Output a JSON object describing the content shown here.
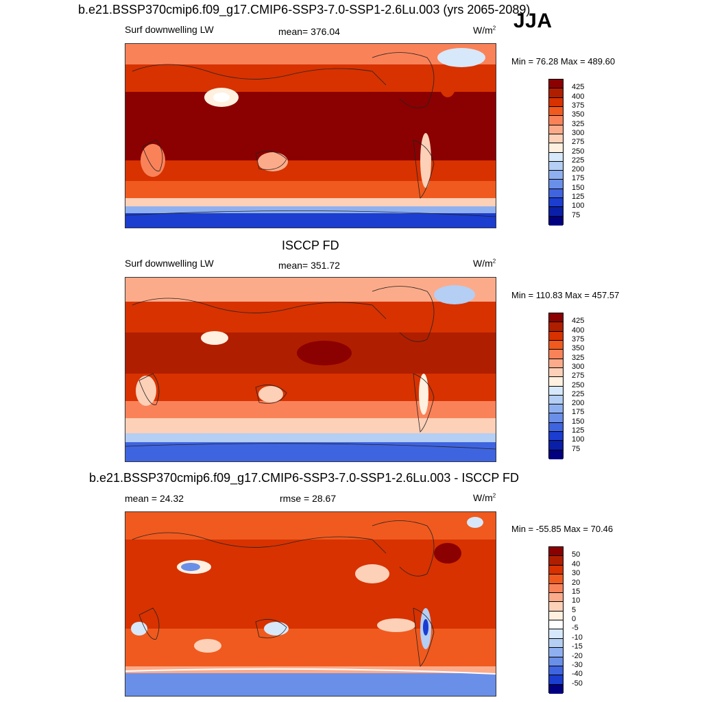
{
  "header": {
    "title": "b.e21.BSSP370cmip6.f09_g17.CMIP6-SSP3-7.0-SSP1-2.6Lu.003 (yrs 2065-2089)",
    "season": "JJA"
  },
  "panels": [
    {
      "id": "model",
      "title": "",
      "left_label": "Surf downwelling LW",
      "center_label": "mean= 376.04",
      "units_base": "W/m",
      "units_exp": "2",
      "minmax": "Min =  76.28 Max = 489.60",
      "colorbar_ticks": [
        "425",
        "400",
        "375",
        "350",
        "325",
        "300",
        "275",
        "250",
        "225",
        "200",
        "175",
        "150",
        "125",
        "100",
        "75"
      ]
    },
    {
      "id": "obs",
      "title": "ISCCP FD",
      "left_label": "Surf downwelling LW",
      "center_label": "mean= 351.72",
      "units_base": "W/m",
      "units_exp": "2",
      "minmax": "Min = 110.83 Max = 457.57",
      "colorbar_ticks": [
        "425",
        "400",
        "375",
        "350",
        "325",
        "300",
        "275",
        "250",
        "225",
        "200",
        "175",
        "150",
        "125",
        "100",
        "75"
      ]
    },
    {
      "id": "diff",
      "title": "b.e21.BSSP370cmip6.f09_g17.CMIP6-SSP3-7.0-SSP1-2.6Lu.003 - ISCCP FD",
      "left_label": "mean =  24.32",
      "center_label": "rmse =  28.67",
      "units_base": "W/m",
      "units_exp": "2",
      "minmax": "Min = -55.85 Max =  70.46",
      "colorbar_ticks": [
        "50",
        "40",
        "30",
        "20",
        "15",
        "10",
        "5",
        "0",
        "-5",
        "-10",
        "-15",
        "-20",
        "-30",
        "-40",
        "-50"
      ]
    }
  ],
  "colors": {
    "abs_scale": [
      "#8b0000",
      "#b01e00",
      "#d73200",
      "#f05a1e",
      "#fa8259",
      "#fcab8a",
      "#fdd0b8",
      "#fff0e0",
      "#d6e8fa",
      "#b4cef4",
      "#8fb0f0",
      "#6a8fe8",
      "#3f64e0",
      "#1b3dd0",
      "#0a1fa8",
      "#000080"
    ],
    "diff_scale": [
      "#8b0000",
      "#b01e00",
      "#d73200",
      "#f05a1e",
      "#fa8259",
      "#fcab8a",
      "#fdd0b8",
      "#fff0e0",
      "#ffffff",
      "#d6e8fa",
      "#b4cef4",
      "#8fb0f0",
      "#6a8fe8",
      "#3f64e0",
      "#1b3dd0",
      "#000080"
    ]
  }
}
